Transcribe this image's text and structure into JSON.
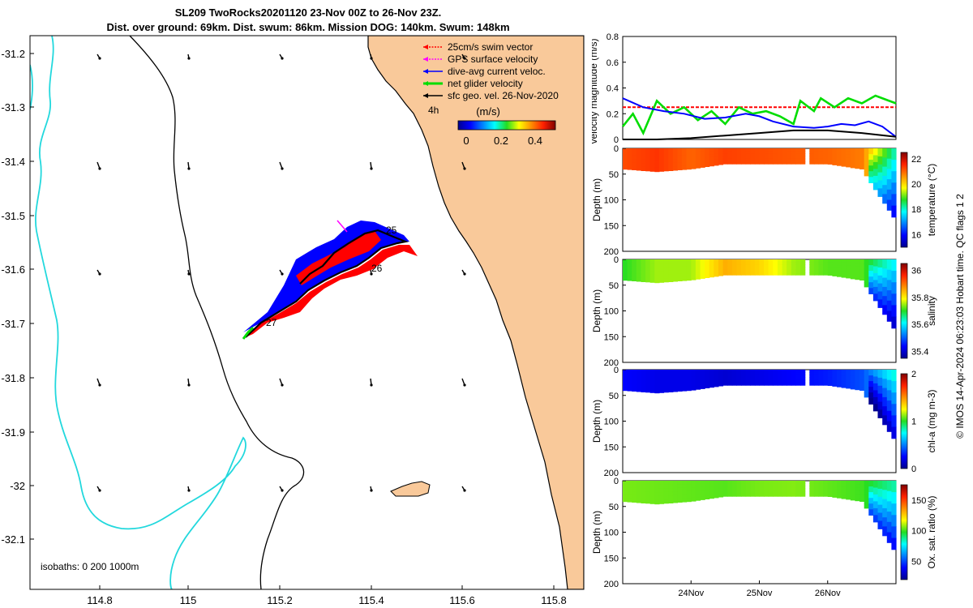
{
  "title_line1": "SL209 TwoRocks20201120 23-Nov 00Z to 26-Nov 23Z.",
  "title_line2": "Dist. over ground: 69km. Dist. swum: 86km. Mission DOG: 140km. Swum: 148km",
  "colors": {
    "land": "#f9c99a",
    "coast_outline": "#000000",
    "isobath_200": "#000000",
    "isobath_1000": "#22d8dd",
    "swim": "#ff0000",
    "gps": "#ff00ff",
    "current": "#0000ff",
    "net": "#00dd00",
    "geo": "#000000"
  },
  "map": {
    "x_ticks": [
      "114.8",
      "115",
      "115.2",
      "115.4",
      "115.6",
      "115.8"
    ],
    "y_ticks": [
      "-31.2",
      "-31.3",
      "-31.4",
      "-31.5",
      "-31.6",
      "-31.7",
      "-31.8",
      "-31.9",
      "-32",
      "-32.1"
    ],
    "legend": [
      {
        "label": "25cm/s swim vector",
        "color": "#ff0000"
      },
      {
        "label": "GPS surface velocity",
        "color": "#ff00ff"
      },
      {
        "label": "dive-avg current veloc.",
        "color": "#0000ff"
      },
      {
        "label": "net glider velocity",
        "color": "#00dd00"
      },
      {
        "label": "sfc geo. vel. 26-Nov-2020",
        "color": "#000000"
      }
    ],
    "time_step": "4h",
    "colorbar_title": "(m/s)",
    "colorbar_ticks": [
      "0",
      "0.2",
      "0.4"
    ],
    "day_labels": [
      "25",
      "26",
      "27"
    ],
    "isobaths_text": "isobaths: 0   200  1000m"
  },
  "chart_data": [
    {
      "type": "line",
      "title": "",
      "ylabel": "velocity magnitude (m/s)",
      "yticks": [
        "0",
        "0.2",
        "0.4",
        "0.6",
        "0.8"
      ],
      "ylim": [
        0,
        0.8
      ],
      "x_days": [
        23.0,
        27.0
      ],
      "series": [
        {
          "name": "swim vector",
          "color": "#ff0000",
          "values": [
            [
              23.0,
              0.25
            ],
            [
              27.0,
              0.25
            ]
          ]
        },
        {
          "name": "net glider velocity",
          "color": "#00dd00",
          "values": [
            [
              23.0,
              0.1
            ],
            [
              23.15,
              0.2
            ],
            [
              23.3,
              0.05
            ],
            [
              23.5,
              0.3
            ],
            [
              23.7,
              0.2
            ],
            [
              23.9,
              0.25
            ],
            [
              24.1,
              0.15
            ],
            [
              24.3,
              0.22
            ],
            [
              24.5,
              0.12
            ],
            [
              24.7,
              0.25
            ],
            [
              24.9,
              0.2
            ],
            [
              25.1,
              0.22
            ],
            [
              25.3,
              0.18
            ],
            [
              25.5,
              0.12
            ],
            [
              25.6,
              0.3
            ],
            [
              25.8,
              0.22
            ],
            [
              25.9,
              0.32
            ],
            [
              26.1,
              0.25
            ],
            [
              26.3,
              0.32
            ],
            [
              26.5,
              0.28
            ],
            [
              26.7,
              0.34
            ],
            [
              26.9,
              0.3
            ],
            [
              27.0,
              0.28
            ]
          ]
        },
        {
          "name": "dive-avg current",
          "color": "#0000ff",
          "values": [
            [
              23.0,
              0.32
            ],
            [
              23.3,
              0.25
            ],
            [
              23.6,
              0.22
            ],
            [
              23.9,
              0.2
            ],
            [
              24.2,
              0.16
            ],
            [
              24.5,
              0.17
            ],
            [
              24.8,
              0.2
            ],
            [
              25.0,
              0.18
            ],
            [
              25.2,
              0.14
            ],
            [
              25.5,
              0.1
            ],
            [
              25.8,
              0.09
            ],
            [
              26.0,
              0.1
            ],
            [
              26.2,
              0.12
            ],
            [
              26.4,
              0.11
            ],
            [
              26.6,
              0.14
            ],
            [
              26.8,
              0.1
            ],
            [
              27.0,
              0.02
            ]
          ]
        },
        {
          "name": "sfc geo. vel.",
          "color": "#000000",
          "values": [
            [
              23.0,
              0.0
            ],
            [
              23.5,
              0.0
            ],
            [
              24.0,
              0.01
            ],
            [
              24.5,
              0.03
            ],
            [
              25.0,
              0.05
            ],
            [
              25.5,
              0.07
            ],
            [
              26.0,
              0.07
            ],
            [
              26.5,
              0.05
            ],
            [
              27.0,
              0.02
            ]
          ]
        }
      ]
    },
    {
      "type": "heatmap",
      "ylabel": "Depth (m)",
      "cbar_label": "temperature (°C)",
      "cbar_ticks": [
        "16",
        "18",
        "20",
        "22"
      ],
      "clim": [
        15,
        22.5
      ],
      "yticks": [
        "0",
        "50",
        "100",
        "150",
        "200"
      ],
      "x_days": [
        23.0,
        27.0
      ],
      "profile": [
        {
          "x": 23.0,
          "depth": 40,
          "v": 21.2
        },
        {
          "x": 23.5,
          "depth": 45,
          "v": 21.4
        },
        {
          "x": 24.0,
          "depth": 40,
          "v": 21.0
        },
        {
          "x": 24.5,
          "depth": 30,
          "v": 21.3
        },
        {
          "x": 25.0,
          "depth": 30,
          "v": 21.2
        },
        {
          "x": 25.5,
          "depth": 30,
          "v": 21.1
        },
        {
          "x": 26.0,
          "depth": 30,
          "v": 21.0
        },
        {
          "x": 26.5,
          "depth": 40,
          "v": 20.8
        },
        {
          "x": 27.0,
          "depth": 140,
          "v": 18.0
        }
      ]
    },
    {
      "type": "heatmap",
      "ylabel": "Depth (m)",
      "cbar_label": "salinity",
      "cbar_ticks": [
        "35.4",
        "35.6",
        "35.8",
        "36"
      ],
      "clim": [
        35.35,
        36.05
      ],
      "yticks": [
        "0",
        "50",
        "100",
        "150",
        "200"
      ],
      "x_days": [
        23.0,
        27.0
      ],
      "profile": [
        {
          "x": 23.0,
          "depth": 40,
          "v": 35.7
        },
        {
          "x": 23.5,
          "depth": 45,
          "v": 35.75
        },
        {
          "x": 24.0,
          "depth": 40,
          "v": 35.75
        },
        {
          "x": 24.5,
          "depth": 30,
          "v": 35.85
        },
        {
          "x": 25.0,
          "depth": 30,
          "v": 35.82
        },
        {
          "x": 25.5,
          "depth": 30,
          "v": 35.75
        },
        {
          "x": 26.0,
          "depth": 30,
          "v": 35.72
        },
        {
          "x": 26.5,
          "depth": 40,
          "v": 35.72
        },
        {
          "x": 27.0,
          "depth": 140,
          "v": 35.6
        }
      ]
    },
    {
      "type": "heatmap",
      "ylabel": "Depth (m)",
      "cbar_label": "chl-a (mg m-3)",
      "cbar_ticks": [
        "0",
        "1",
        "2"
      ],
      "clim": [
        0,
        2
      ],
      "yticks": [
        "0",
        "50",
        "100",
        "150",
        "200"
      ],
      "x_days": [
        23.0,
        27.0
      ],
      "profile": [
        {
          "x": 23.0,
          "depth": 40,
          "v": 0.25
        },
        {
          "x": 23.5,
          "depth": 45,
          "v": 0.2
        },
        {
          "x": 24.0,
          "depth": 40,
          "v": 0.2
        },
        {
          "x": 24.5,
          "depth": 30,
          "v": 0.15
        },
        {
          "x": 25.0,
          "depth": 30,
          "v": 0.2
        },
        {
          "x": 25.5,
          "depth": 30,
          "v": 0.25
        },
        {
          "x": 26.0,
          "depth": 30,
          "v": 0.3
        },
        {
          "x": 26.5,
          "depth": 40,
          "v": 0.4
        },
        {
          "x": 27.0,
          "depth": 140,
          "v": 0.8
        }
      ]
    },
    {
      "type": "heatmap",
      "ylabel": "Depth (m)",
      "cbar_label": "Ox. sat. ratio (%)",
      "cbar_ticks": [
        "50",
        "100",
        "150"
      ],
      "clim": [
        20,
        175
      ],
      "yticks": [
        "0",
        "50",
        "100",
        "150",
        "200"
      ],
      "x_days": [
        23.0,
        27.0
      ],
      "xticks": [
        "24Nov",
        "25Nov",
        "26Nov"
      ],
      "profile": [
        {
          "x": 23.0,
          "depth": 40,
          "v": 105
        },
        {
          "x": 23.5,
          "depth": 45,
          "v": 104
        },
        {
          "x": 24.0,
          "depth": 40,
          "v": 103
        },
        {
          "x": 24.5,
          "depth": 30,
          "v": 102
        },
        {
          "x": 25.0,
          "depth": 30,
          "v": 105
        },
        {
          "x": 25.5,
          "depth": 30,
          "v": 106
        },
        {
          "x": 26.0,
          "depth": 30,
          "v": 103
        },
        {
          "x": 26.5,
          "depth": 40,
          "v": 100
        },
        {
          "x": 27.0,
          "depth": 140,
          "v": 85
        }
      ]
    }
  ],
  "side_caption": "© IMOS 14-Apr-2024 06:23:03 Hobart time. QC flags 1  2"
}
